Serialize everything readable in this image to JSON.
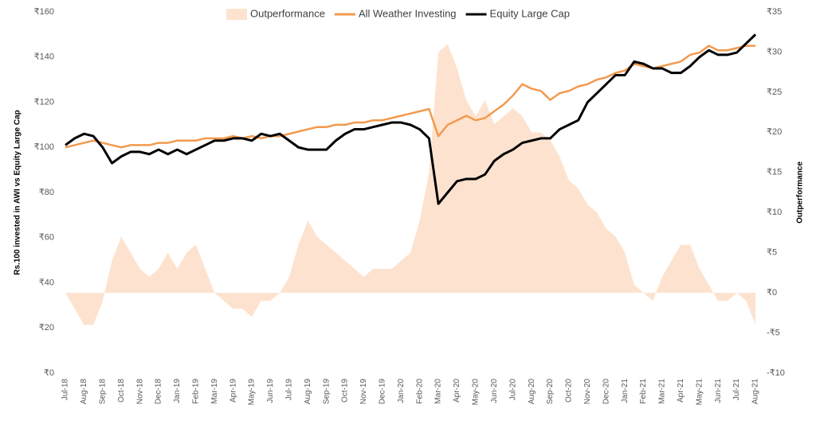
{
  "chart_data": {
    "type": "combo",
    "legend": "top",
    "ylabel": "Rs.100 invested in AWI vs Equity Large Cap",
    "y2label": "Outperformance",
    "categories": [
      "Jul-18",
      null,
      "Aug-18",
      null,
      "Sep-18",
      null,
      "Oct-18",
      null,
      "Nov-18",
      null,
      "Dec-18",
      null,
      "Jan-19",
      null,
      "Feb-19",
      null,
      "Mar-19",
      null,
      "Apr-19",
      null,
      "May-19",
      null,
      "Jun-19",
      null,
      "Jul-19",
      null,
      "Aug-19",
      null,
      "Sep-19",
      null,
      "Oct-19",
      null,
      "Nov-19",
      null,
      "Dec-19",
      null,
      "Jan-20",
      null,
      "Feb-20",
      null,
      "Mar-20",
      null,
      "Apr-20",
      null,
      "May-20",
      null,
      "Jun-20",
      null,
      "Jul-20",
      null,
      "Aug-20",
      null,
      "Sep-20",
      null,
      "Oct-20",
      null,
      "Nov-20",
      null,
      "Dec-20",
      null,
      "Jan-21",
      null,
      "Feb-21",
      null,
      "Mar-21",
      null,
      "Apr-21",
      null,
      "May-21",
      null,
      "Jun-21",
      null,
      "Jul-21",
      null,
      "Aug-21"
    ],
    "series": [
      {
        "name": "Outperformance",
        "type": "area",
        "axis": "y2",
        "color": "#fde3cf",
        "values": [
          0,
          -2,
          -4,
          -4,
          -1,
          4,
          7,
          5,
          3,
          2,
          3,
          5,
          3,
          5,
          6,
          3,
          0,
          -1,
          -2,
          -2,
          -3,
          -1,
          -1,
          0,
          2,
          6,
          9,
          7,
          6,
          5,
          4,
          3,
          2,
          3,
          3,
          3,
          4,
          5,
          9,
          15,
          30,
          31,
          28,
          24,
          22,
          24,
          21,
          22,
          23,
          22,
          20,
          20,
          19,
          17,
          14,
          13,
          11,
          10,
          8,
          7,
          5,
          1,
          0,
          -1,
          2,
          4,
          6,
          6,
          3,
          1,
          -1,
          -1,
          0,
          -1,
          -4
        ]
      },
      {
        "name": "All Weather Investing",
        "type": "line",
        "color": "#f29a4e",
        "values": [
          100,
          101,
          102,
          103,
          102,
          101,
          100,
          101,
          101,
          101,
          102,
          102,
          103,
          103,
          103,
          104,
          104,
          104,
          105,
          104,
          105,
          104,
          105,
          105,
          106,
          107,
          108,
          109,
          109,
          110,
          110,
          111,
          111,
          112,
          112,
          113,
          114,
          115,
          116,
          117,
          105,
          110,
          112,
          114,
          112,
          113,
          116,
          119,
          123,
          128,
          126,
          125,
          121,
          124,
          125,
          127,
          128,
          130,
          131,
          133,
          134,
          137,
          136,
          135,
          136,
          137,
          138,
          141,
          142,
          145,
          143,
          143,
          144,
          145,
          145
        ]
      },
      {
        "name": "Equity Large Cap",
        "type": "line",
        "color": "#000000",
        "values": [
          101,
          104,
          106,
          105,
          100,
          93,
          96,
          98,
          98,
          97,
          99,
          97,
          99,
          97,
          99,
          101,
          103,
          103,
          104,
          104,
          103,
          106,
          105,
          106,
          103,
          100,
          99,
          99,
          99,
          103,
          106,
          108,
          108,
          109,
          110,
          111,
          111,
          110,
          108,
          104,
          75,
          80,
          85,
          86,
          86,
          88,
          94,
          97,
          99,
          102,
          103,
          104,
          104,
          108,
          110,
          112,
          120,
          124,
          128,
          132,
          132,
          138,
          137,
          135,
          135,
          133,
          133,
          136,
          140,
          143,
          141,
          141,
          142,
          146,
          150
        ]
      }
    ],
    "ylim": [
      0,
      160
    ],
    "yticks": [
      {
        "value": 0,
        "label": "₹0"
      },
      {
        "value": 20,
        "label": "₹20"
      },
      {
        "value": 40,
        "label": "₹40"
      },
      {
        "value": 60,
        "label": "₹60"
      },
      {
        "value": 80,
        "label": "₹80"
      },
      {
        "value": 100,
        "label": "₹100"
      },
      {
        "value": 120,
        "label": "₹120"
      },
      {
        "value": 140,
        "label": "₹140"
      },
      {
        "value": 160,
        "label": "₹160"
      }
    ],
    "y2lim": [
      -10,
      35
    ],
    "y2ticks": [
      {
        "value": -10,
        "label": "-₹10"
      },
      {
        "value": -5,
        "label": "-₹5"
      },
      {
        "value": 0,
        "label": "₹0"
      },
      {
        "value": 5,
        "label": "₹5"
      },
      {
        "value": 10,
        "label": "₹10"
      },
      {
        "value": 15,
        "label": "₹15"
      },
      {
        "value": 20,
        "label": "₹20"
      },
      {
        "value": 25,
        "label": "₹25"
      },
      {
        "value": 30,
        "label": "₹30"
      },
      {
        "value": 35,
        "label": "₹35"
      }
    ],
    "grid": false
  }
}
